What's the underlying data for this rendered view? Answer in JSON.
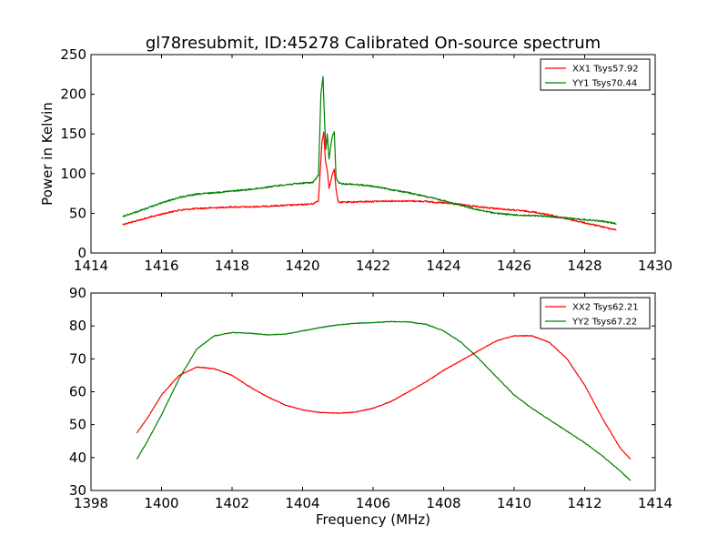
{
  "figure": {
    "title": "gl78resubmit, ID:45278 Calibrated On-source spectrum"
  },
  "chart_data": [
    {
      "type": "line",
      "panel": "top",
      "title": "gl78resubmit, ID:45278 Calibrated On-source spectrum",
      "xlabel": "",
      "ylabel": "Power in Kelvin",
      "xlim": [
        1414,
        1430
      ],
      "ylim": [
        0,
        250
      ],
      "xticks": [
        1414,
        1416,
        1418,
        1420,
        1422,
        1424,
        1426,
        1428,
        1430
      ],
      "yticks": [
        0,
        50,
        100,
        150,
        200,
        250
      ],
      "grid": false,
      "legend_position": "top-right",
      "series": [
        {
          "name": "XX1 Tsys57.92",
          "color": "#ff0000",
          "x": [
            1414.9,
            1415.5,
            1416.0,
            1416.5,
            1417.0,
            1417.5,
            1418.0,
            1418.5,
            1419.0,
            1419.5,
            1420.0,
            1420.3,
            1420.45,
            1420.55,
            1420.6,
            1420.65,
            1420.7,
            1420.75,
            1420.8,
            1420.85,
            1420.9,
            1420.95,
            1421.0,
            1421.05,
            1421.1,
            1421.3,
            1421.6,
            1422.0,
            1422.5,
            1423.0,
            1423.5,
            1424.0,
            1424.5,
            1425.0,
            1425.5,
            1426.0,
            1426.5,
            1427.0,
            1427.5,
            1428.0,
            1428.5,
            1428.9
          ],
          "y": [
            36,
            43,
            49,
            54,
            56,
            57,
            58,
            58,
            59,
            60,
            61,
            62,
            66,
            140,
            152,
            115,
            104,
            82,
            90,
            100,
            106,
            80,
            66,
            64,
            64,
            64,
            64.5,
            65,
            65.5,
            65.5,
            65,
            63,
            61,
            58,
            56,
            54,
            52,
            48,
            43,
            38,
            33,
            29
          ]
        },
        {
          "name": "YY1 Tsys70.44",
          "color": "#008000",
          "x": [
            1414.9,
            1415.5,
            1416.0,
            1416.5,
            1417.0,
            1417.5,
            1418.0,
            1418.5,
            1419.0,
            1419.5,
            1420.0,
            1420.3,
            1420.45,
            1420.52,
            1420.58,
            1420.62,
            1420.66,
            1420.7,
            1420.75,
            1420.8,
            1420.85,
            1420.9,
            1420.95,
            1421.0,
            1421.05,
            1421.1,
            1421.3,
            1421.6,
            1422.0,
            1422.5,
            1423.0,
            1423.5,
            1424.0,
            1424.5,
            1425.0,
            1425.5,
            1426.0,
            1426.5,
            1427.0,
            1427.5,
            1428.0,
            1428.5,
            1428.9
          ],
          "y": [
            46,
            55,
            63,
            70,
            74,
            76,
            78,
            80,
            83,
            86,
            88,
            89,
            98,
            200,
            222,
            170,
            130,
            150,
            118,
            135,
            148,
            152,
            95,
            90,
            88,
            87,
            87,
            86,
            84,
            80,
            76,
            71,
            66,
            60,
            54,
            50,
            48,
            47,
            46,
            44,
            42,
            40,
            37
          ]
        }
      ]
    },
    {
      "type": "line",
      "panel": "bottom",
      "xlabel": "Frequency (MHz)",
      "ylabel": "",
      "xlim": [
        1398,
        1414
      ],
      "ylim": [
        30,
        90
      ],
      "xticks": [
        1398,
        1400,
        1402,
        1404,
        1406,
        1408,
        1410,
        1412,
        1414
      ],
      "yticks": [
        30,
        40,
        50,
        60,
        70,
        80,
        90
      ],
      "grid": false,
      "legend_position": "top-right",
      "series": [
        {
          "name": "XX2 Tsys62.21",
          "color": "#ff0000",
          "x": [
            1399.3,
            1399.6,
            1400.0,
            1400.5,
            1401.0,
            1401.5,
            1402.0,
            1402.5,
            1403.0,
            1403.5,
            1404.0,
            1404.5,
            1405.0,
            1405.5,
            1406.0,
            1406.5,
            1407.0,
            1407.5,
            1408.0,
            1408.5,
            1409.0,
            1409.5,
            1410.0,
            1410.5,
            1411.0,
            1411.5,
            1412.0,
            1412.5,
            1413.0,
            1413.3
          ],
          "y": [
            47.5,
            52,
            59,
            65,
            67.5,
            67,
            65,
            61.5,
            58.5,
            56,
            54.5,
            53.7,
            53.5,
            53.8,
            55,
            57,
            60,
            63,
            66.5,
            69.5,
            72.5,
            75.5,
            77,
            77,
            75,
            70,
            62,
            52,
            43,
            39.5
          ]
        },
        {
          "name": "YY2 Tsys67.22",
          "color": "#008000",
          "x": [
            1399.3,
            1399.6,
            1400.0,
            1400.5,
            1401.0,
            1401.5,
            1402.0,
            1402.5,
            1403.0,
            1403.5,
            1404.0,
            1404.5,
            1405.0,
            1405.5,
            1406.0,
            1406.5,
            1407.0,
            1407.5,
            1408.0,
            1408.5,
            1409.0,
            1409.5,
            1410.0,
            1410.5,
            1411.0,
            1411.5,
            1412.0,
            1412.5,
            1413.0,
            1413.3
          ],
          "y": [
            39.5,
            45,
            53,
            64,
            73,
            77,
            78,
            77.8,
            77.3,
            77.5,
            78.5,
            79.5,
            80.3,
            80.8,
            81,
            81.3,
            81.2,
            80.5,
            78.5,
            75,
            70,
            64.5,
            59,
            55,
            51.5,
            48,
            44.5,
            40.5,
            36,
            33
          ]
        }
      ]
    }
  ]
}
